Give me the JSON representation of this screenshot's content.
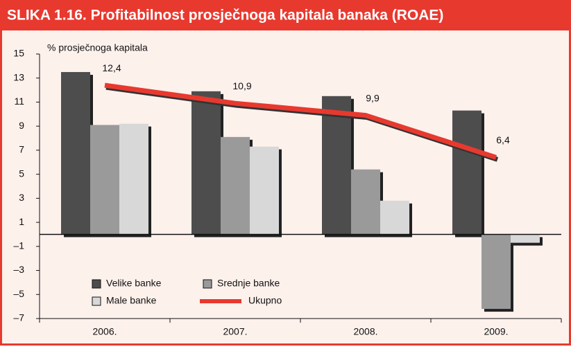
{
  "chart_data": {
    "type": "bar",
    "title": "SLIKA 1.16. Profitabilnost prosječnoga kapitala banaka (ROAE)",
    "y_axis_label": "% prosječnoga kapitala",
    "categories": [
      "2006.",
      "2007.",
      "2008.",
      "2009."
    ],
    "series": [
      {
        "name": "Velike banke",
        "color": "#4d4d4d",
        "values": [
          13.5,
          11.9,
          11.5,
          10.3
        ]
      },
      {
        "name": "Srednje banke",
        "color": "#9a9a9a",
        "values": [
          9.1,
          8.1,
          5.4,
          -6.2
        ]
      },
      {
        "name": "Male banke",
        "color": "#d8d8d8",
        "values": [
          9.2,
          7.3,
          2.8,
          -0.7
        ]
      },
      {
        "name": "Ukupno",
        "type": "line",
        "color": "#e8392f",
        "values": [
          12.4,
          10.9,
          9.9,
          6.4
        ],
        "value_labels": [
          "12,4",
          "10,9",
          "9,9",
          "6,4"
        ]
      }
    ],
    "ylim": [
      -7,
      15
    ],
    "yticks": [
      {
        "value": -7,
        "label": "–7"
      },
      {
        "value": -5,
        "label": "–5"
      },
      {
        "value": -3,
        "label": "–3"
      },
      {
        "value": -1,
        "label": "–1"
      },
      1,
      3,
      5,
      7,
      9,
      11,
      13,
      15
    ],
    "legend": "lower left"
  }
}
